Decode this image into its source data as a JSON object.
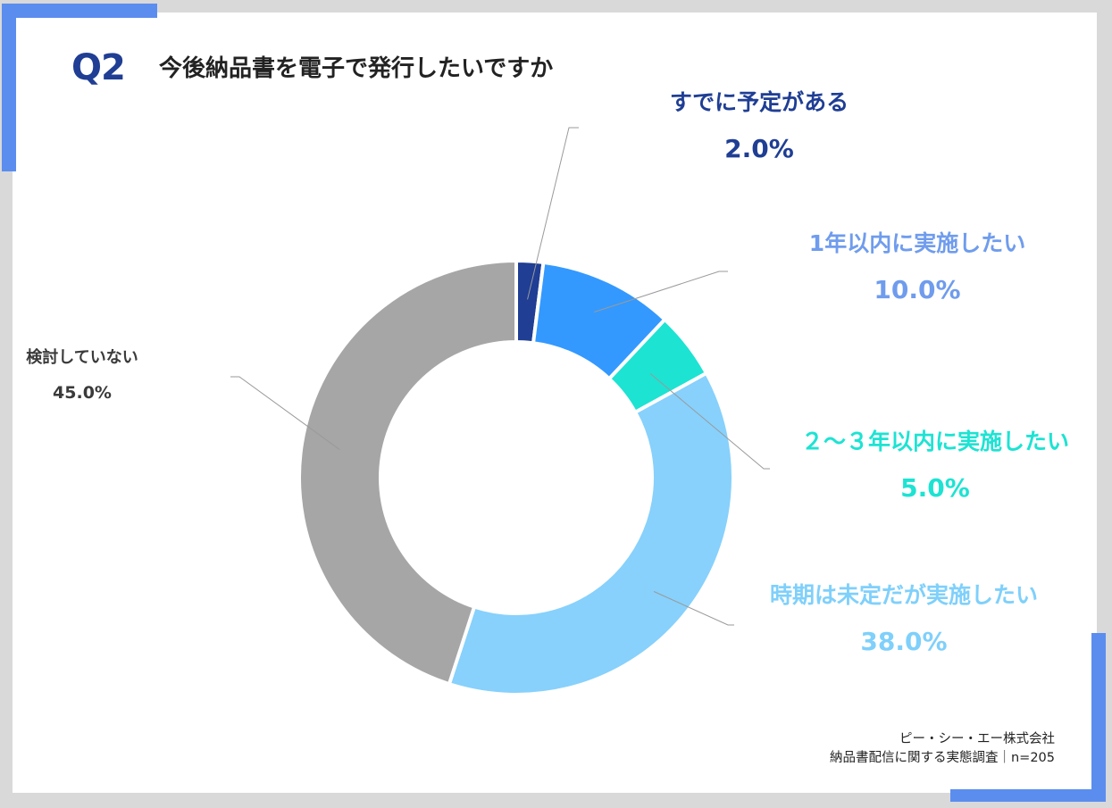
{
  "colors": {
    "accent": "#5b8def",
    "title_dark": "#1f3e94"
  },
  "header": {
    "question_number": "Q2",
    "title": "今後納品書を電子で発行したいですか"
  },
  "footer": {
    "company": "ピー・シー・エー株式会社",
    "survey": "納品書配信に関する実態調査｜n=205"
  },
  "chart_data": {
    "type": "pie",
    "variant": "donut",
    "title": "今後納品書を電子で発行したいですか",
    "slices": [
      {
        "label": "すでに予定がある",
        "value": 2.0,
        "display": "2.0%",
        "color": "#1f3e94"
      },
      {
        "label": "1年以内に実施したい",
        "value": 10.0,
        "display": "10.0%",
        "color": "#3399ff"
      },
      {
        "label": "２～３年以内に実施したい",
        "value": 5.0,
        "display": "5.0%",
        "color": "#1de3d3"
      },
      {
        "label": "時期は未定だが実施したい",
        "value": 38.0,
        "display": "38.0%",
        "color": "#87d1fc"
      },
      {
        "label": "検討していない",
        "value": 45.0,
        "display": "45.0%",
        "color": "#a6a6a6"
      }
    ],
    "label_colors": [
      "#1f3e94",
      "#6f9ced",
      "#1de3d3",
      "#7fd0fb",
      "#3a3a3a"
    ]
  }
}
